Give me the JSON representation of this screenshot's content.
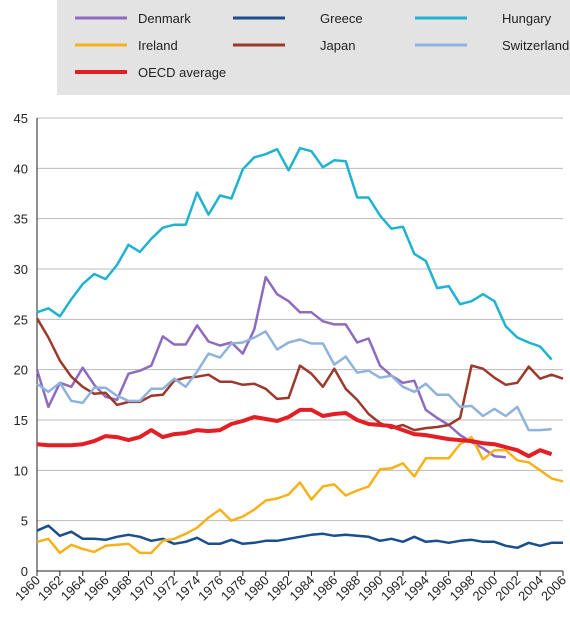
{
  "chart_data": {
    "type": "line",
    "x": [
      1960,
      1961,
      1962,
      1963,
      1964,
      1965,
      1966,
      1967,
      1968,
      1969,
      1970,
      1971,
      1972,
      1973,
      1974,
      1975,
      1976,
      1977,
      1978,
      1979,
      1980,
      1981,
      1982,
      1983,
      1984,
      1985,
      1986,
      1987,
      1988,
      1989,
      1990,
      1991,
      1992,
      1993,
      1994,
      1995,
      1996,
      1997,
      1998,
      1999,
      2000,
      2001,
      2002,
      2003,
      2004,
      2005,
      2006
    ],
    "series": [
      {
        "name": "Denmark",
        "color": "#8e6bbf",
        "values": [
          20.0,
          16.3,
          18.7,
          18.3,
          20.2,
          18.5,
          17.3,
          17.0,
          19.6,
          19.9,
          20.4,
          23.3,
          22.5,
          22.5,
          24.4,
          22.8,
          22.4,
          22.7,
          21.6,
          24.0,
          29.2,
          27.5,
          26.8,
          25.7,
          25.7,
          24.8,
          24.5,
          24.5,
          22.7,
          23.1,
          20.4,
          19.4,
          18.7,
          18.9,
          16.0,
          15.2,
          14.5,
          13.5,
          12.8,
          12.2,
          11.4,
          11.3,
          null,
          null,
          null,
          null,
          null
        ]
      },
      {
        "name": "Greece",
        "color": "#1a4e8c",
        "values": [
          4.0,
          4.5,
          3.5,
          3.9,
          3.2,
          3.2,
          3.1,
          3.4,
          3.6,
          3.4,
          3.0,
          3.2,
          2.7,
          2.9,
          3.3,
          2.7,
          2.7,
          3.1,
          2.7,
          2.8,
          3.0,
          3.0,
          3.2,
          3.4,
          3.6,
          3.7,
          3.5,
          3.6,
          3.5,
          3.4,
          3.0,
          3.2,
          2.9,
          3.4,
          2.9,
          3.0,
          2.8,
          3.0,
          3.1,
          2.9,
          2.9,
          2.5,
          2.3,
          2.8,
          2.5,
          2.8,
          2.8
        ]
      },
      {
        "name": "Hungary",
        "color": "#1fb3d0",
        "values": [
          25.7,
          26.1,
          25.3,
          27.0,
          28.5,
          29.5,
          29.0,
          30.4,
          32.4,
          31.7,
          33.0,
          34.1,
          34.4,
          34.4,
          37.6,
          35.4,
          37.3,
          37.0,
          39.9,
          41.1,
          41.4,
          41.9,
          39.8,
          42.0,
          41.7,
          40.1,
          40.8,
          40.7,
          37.1,
          37.1,
          35.3,
          34.0,
          34.2,
          31.5,
          30.8,
          28.1,
          28.3,
          26.5,
          26.8,
          27.5,
          26.8,
          24.3,
          23.2,
          22.7,
          22.3,
          21.0,
          null
        ]
      },
      {
        "name": "Ireland",
        "color": "#f7b21b",
        "values": [
          2.9,
          3.2,
          1.8,
          2.6,
          2.2,
          1.9,
          2.5,
          2.6,
          2.7,
          1.8,
          1.8,
          3.0,
          3.2,
          3.7,
          4.3,
          5.3,
          6.1,
          5.0,
          5.4,
          6.1,
          7.0,
          7.2,
          7.6,
          8.8,
          7.1,
          8.4,
          8.6,
          7.5,
          8.0,
          8.4,
          10.1,
          10.2,
          10.7,
          9.4,
          11.2,
          11.2,
          11.2,
          12.6,
          13.3,
          11.1,
          12.0,
          12.0,
          11.0,
          10.8,
          10.0,
          9.2,
          8.9
        ]
      },
      {
        "name": "Japan",
        "color": "#9b3a2c",
        "values": [
          25.1,
          23.2,
          20.9,
          19.3,
          18.3,
          17.6,
          17.7,
          16.5,
          16.8,
          16.8,
          17.4,
          17.5,
          18.9,
          19.2,
          19.3,
          19.5,
          18.8,
          18.8,
          18.5,
          18.6,
          18.1,
          17.1,
          17.2,
          20.4,
          19.6,
          18.3,
          20.1,
          18.1,
          17.0,
          15.6,
          14.7,
          14.2,
          14.5,
          14.0,
          14.2,
          14.3,
          14.5,
          15.2,
          20.4,
          20.1,
          19.2,
          18.5,
          18.7,
          20.3,
          19.1,
          19.5,
          19.1
        ]
      },
      {
        "name": "Switzerland",
        "color": "#8fb3dd",
        "values": [
          18.6,
          17.8,
          18.7,
          16.9,
          16.7,
          18.2,
          18.2,
          17.4,
          16.9,
          16.9,
          18.1,
          18.1,
          19.1,
          18.3,
          19.8,
          21.6,
          21.2,
          22.6,
          22.7,
          23.2,
          23.8,
          22.0,
          22.7,
          23.0,
          22.6,
          22.6,
          20.5,
          21.3,
          19.7,
          19.9,
          19.2,
          19.4,
          18.3,
          17.8,
          18.6,
          17.5,
          17.5,
          16.3,
          16.4,
          15.4,
          16.1,
          15.4,
          16.3,
          14.0,
          14.0,
          14.1,
          null
        ]
      },
      {
        "name": "OECD average",
        "color": "#e31e24",
        "values": [
          12.6,
          12.5,
          12.5,
          12.5,
          12.6,
          12.9,
          13.4,
          13.3,
          13.0,
          13.3,
          14.0,
          13.3,
          13.6,
          13.7,
          14.0,
          13.9,
          14.0,
          14.6,
          14.9,
          15.3,
          15.1,
          14.9,
          15.3,
          16.0,
          16.0,
          15.4,
          15.6,
          15.7,
          15.0,
          14.6,
          14.5,
          14.4,
          14.0,
          13.6,
          13.5,
          13.3,
          13.1,
          13.0,
          12.9,
          12.7,
          12.6,
          12.3,
          12.0,
          11.4,
          12.0,
          11.6,
          null
        ]
      }
    ],
    "xlim": [
      1960,
      2006
    ],
    "xticks": [
      1960,
      1962,
      1964,
      1966,
      1968,
      1970,
      1972,
      1974,
      1976,
      1978,
      1980,
      1982,
      1984,
      1986,
      1988,
      1990,
      1992,
      1994,
      1996,
      1998,
      2000,
      2002,
      2004,
      2006
    ],
    "ylim": [
      0,
      45
    ],
    "yticks": [
      0,
      5,
      10,
      15,
      20,
      25,
      30,
      35,
      40,
      45
    ],
    "grid": true
  }
}
